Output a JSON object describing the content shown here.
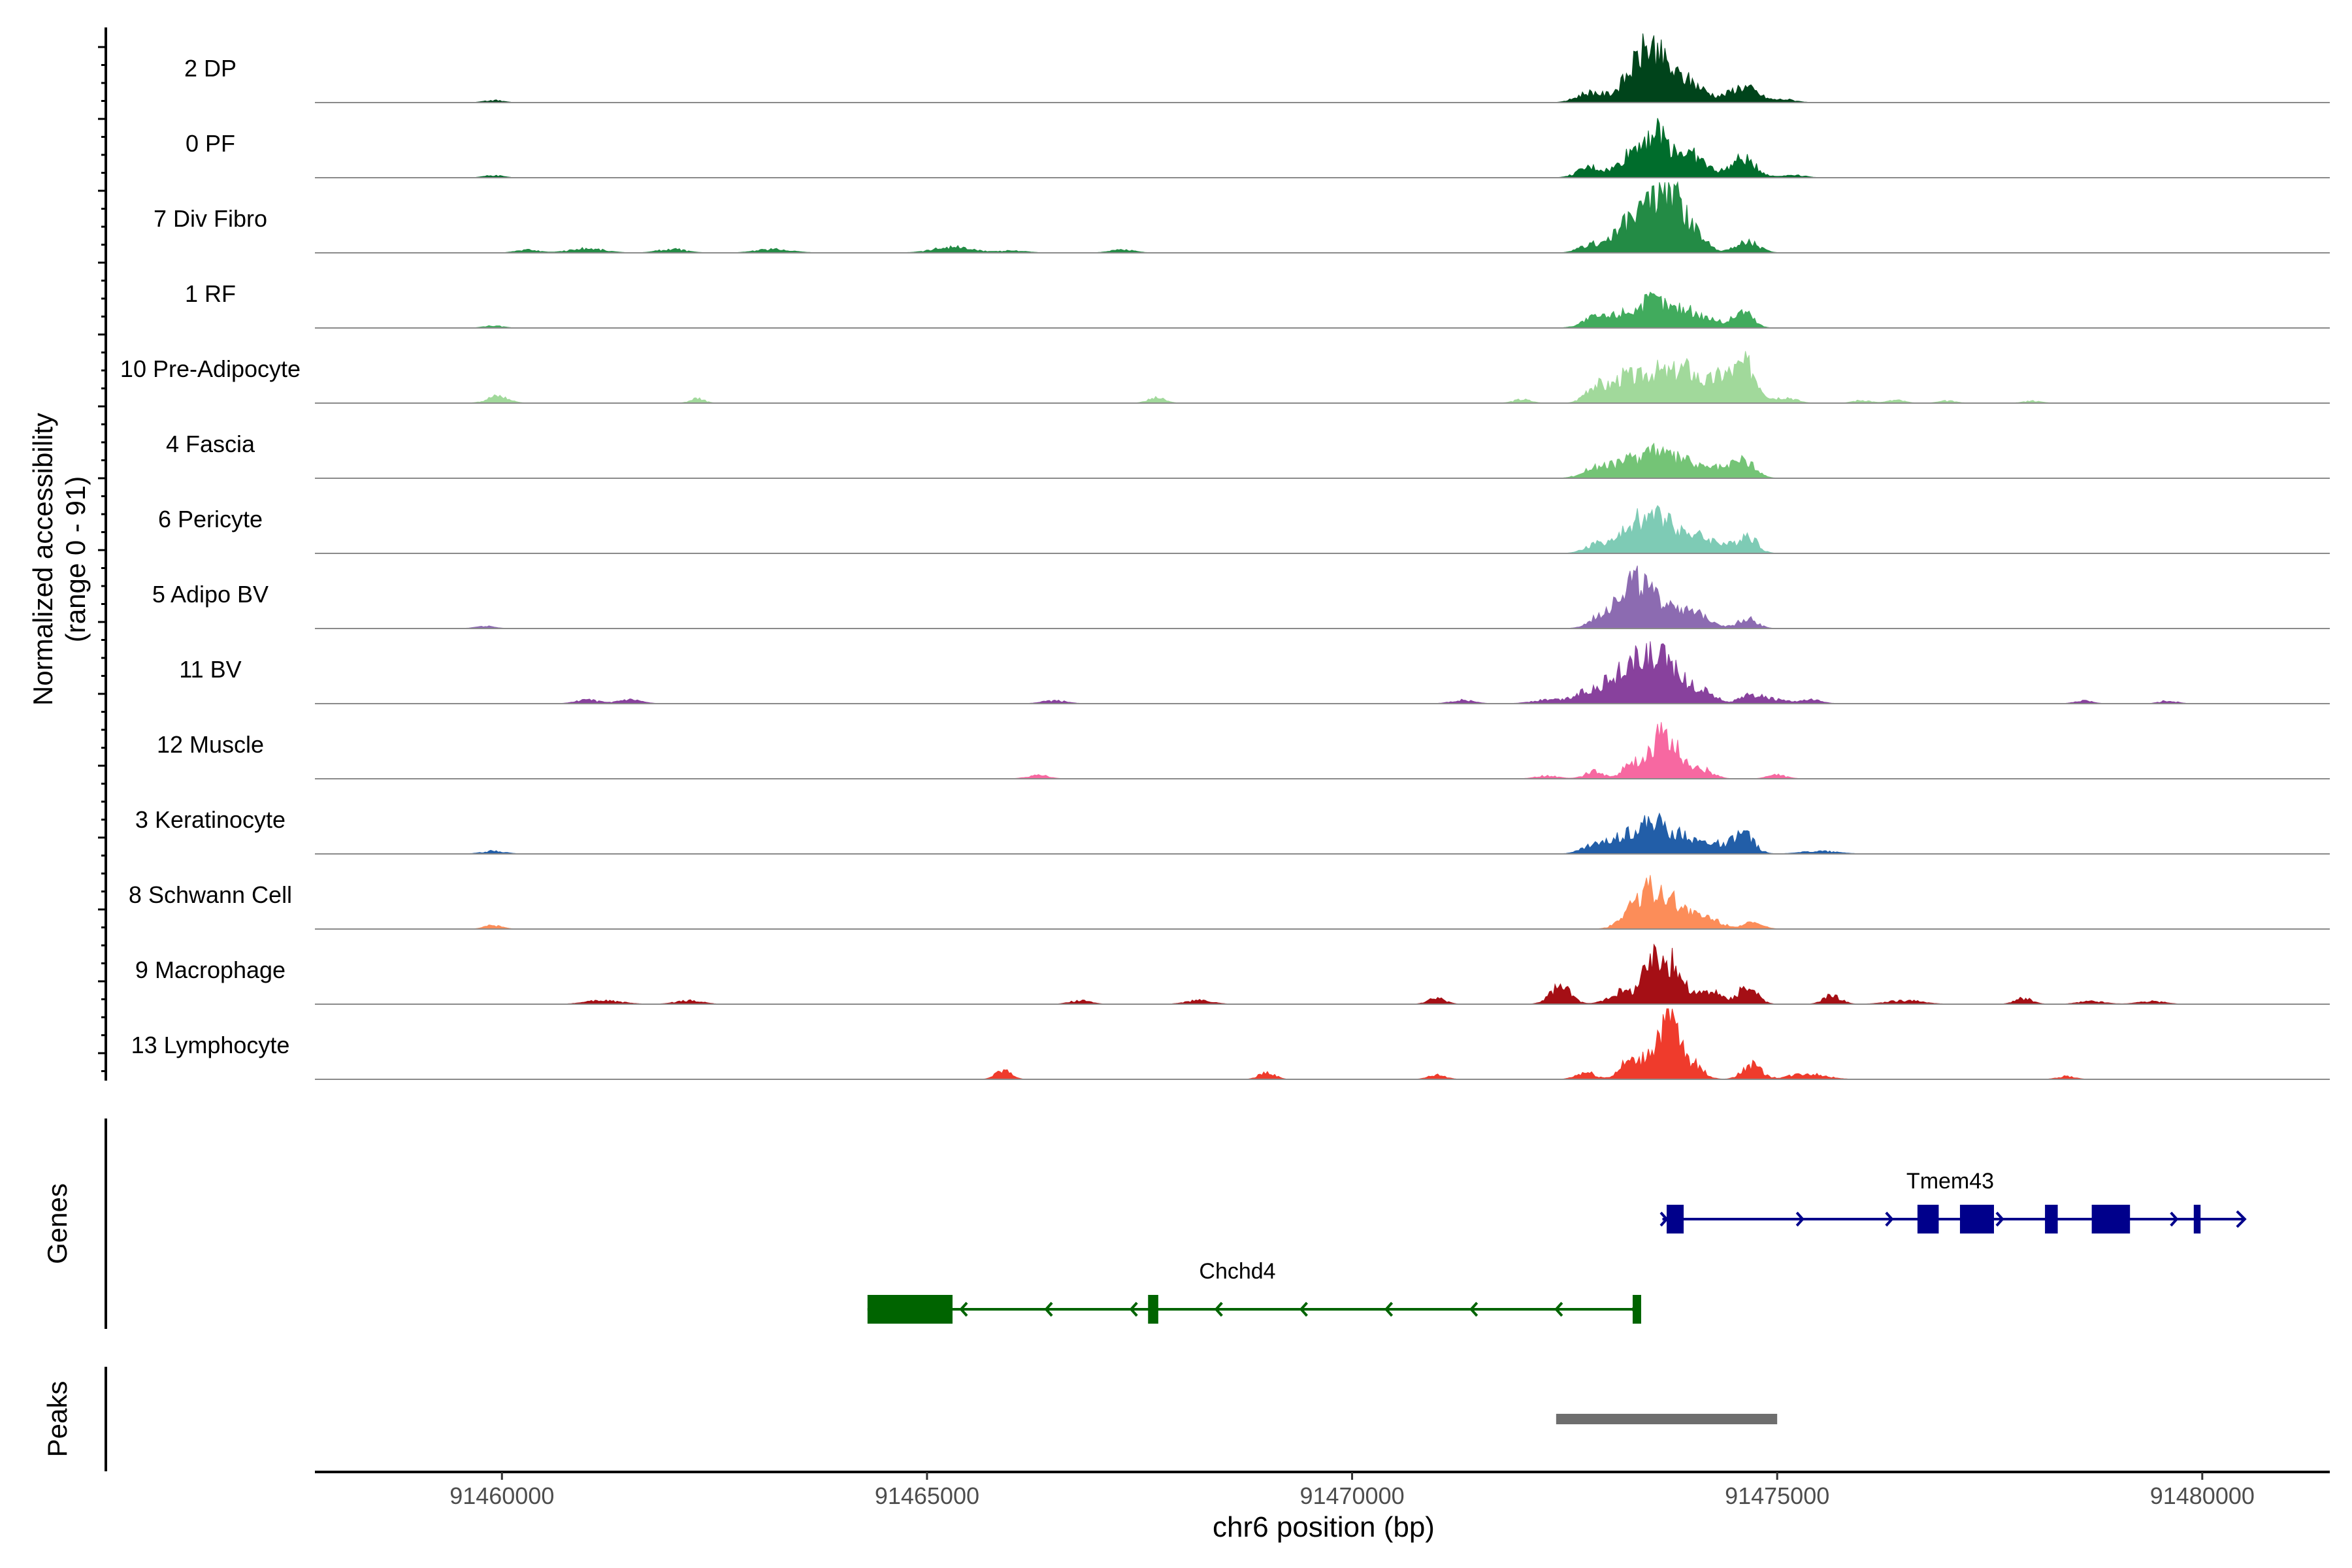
{
  "chart_data": {
    "type": "area",
    "subtype": "genome-coverage-tracks",
    "ylabel_line1": "Normalized accessibility",
    "ylabel_line2": "(range 0 - 91)",
    "y_range": [
      0,
      91
    ],
    "xlabel": "chr6 position (bp)",
    "xlim": [
      91457800,
      91481500
    ],
    "x_ticks": [
      91460000,
      91465000,
      91470000,
      91475000,
      91480000
    ],
    "x_tick_labels": [
      "91460000",
      "91465000",
      "91470000",
      "91475000",
      "91480000"
    ],
    "track_xlim": [
      91457800,
      91481500
    ],
    "tracks": [
      {
        "name": "2 DP",
        "color": "#00441B",
        "peaks": [
          [
            91473350,
            42,
            180
          ],
          [
            91473550,
            50,
            140
          ],
          [
            91473850,
            30,
            160
          ],
          [
            91472800,
            14,
            150
          ],
          [
            91474600,
            22,
            170
          ],
          [
            91474100,
            12,
            140
          ],
          [
            91475100,
            4,
            120
          ],
          [
            91459900,
            3,
            110
          ]
        ]
      },
      {
        "name": "0 PF",
        "color": "#006D2C",
        "peaks": [
          [
            91473350,
            38,
            180
          ],
          [
            91473600,
            44,
            140
          ],
          [
            91473900,
            26,
            160
          ],
          [
            91472800,
            14,
            140
          ],
          [
            91474600,
            26,
            150
          ],
          [
            91474100,
            13,
            150
          ],
          [
            91475200,
            4,
            120
          ],
          [
            91459900,
            3,
            110
          ]
        ]
      },
      {
        "name": "7 Div Fibro",
        "color": "#238B45",
        "peaks": [
          [
            91473500,
            56,
            160
          ],
          [
            91473750,
            66,
            130
          ],
          [
            91473200,
            30,
            170
          ],
          [
            91474000,
            28,
            160
          ],
          [
            91474650,
            16,
            130
          ],
          [
            91472800,
            10,
            130
          ],
          [
            91465300,
            8,
            220
          ],
          [
            91461000,
            6,
            200
          ],
          [
            91462000,
            5,
            160
          ],
          [
            91460300,
            4,
            130
          ],
          [
            91467300,
            4,
            140
          ],
          [
            91463200,
            5,
            200
          ],
          [
            91466000,
            3,
            160
          ]
        ]
      },
      {
        "name": "1 RF",
        "color": "#41AB5D",
        "peaks": [
          [
            91473550,
            38,
            150
          ],
          [
            91473200,
            20,
            150
          ],
          [
            91473900,
            24,
            140
          ],
          [
            91474600,
            24,
            110
          ],
          [
            91472850,
            14,
            140
          ],
          [
            91474200,
            12,
            140
          ],
          [
            91459900,
            3,
            110
          ]
        ]
      },
      {
        "name": "10 Pre-Adipocyte",
        "color": "#A1D99B",
        "peaks": [
          [
            91474650,
            48,
            130
          ],
          [
            91474350,
            36,
            150
          ],
          [
            91473550,
            40,
            140
          ],
          [
            91473200,
            36,
            150
          ],
          [
            91473850,
            30,
            140
          ],
          [
            91472850,
            24,
            110
          ],
          [
            91474000,
            24,
            140
          ],
          [
            91459950,
            10,
            120
          ],
          [
            91462300,
            7,
            80
          ],
          [
            91467700,
            7,
            100
          ],
          [
            91472000,
            5,
            100
          ],
          [
            91475100,
            8,
            120
          ],
          [
            91476000,
            4,
            100
          ],
          [
            91476400,
            4,
            100
          ],
          [
            91477000,
            3,
            100
          ],
          [
            91478000,
            3,
            100
          ]
        ]
      },
      {
        "name": "4 Fascia",
        "color": "#74C476",
        "peaks": [
          [
            91473550,
            40,
            150
          ],
          [
            91473200,
            22,
            150
          ],
          [
            91473900,
            24,
            140
          ],
          [
            91474600,
            26,
            130
          ],
          [
            91472850,
            14,
            140
          ],
          [
            91474250,
            14,
            140
          ]
        ]
      },
      {
        "name": "6 Pericyte",
        "color": "#7ECBB5",
        "peaks": [
          [
            91473450,
            36,
            140
          ],
          [
            91473700,
            42,
            130
          ],
          [
            91473250,
            24,
            140
          ],
          [
            91474000,
            24,
            140
          ],
          [
            91474650,
            26,
            110
          ],
          [
            91472900,
            14,
            140
          ],
          [
            91474300,
            14,
            140
          ]
        ]
      },
      {
        "name": "5 Adipo BV",
        "color": "#8C6BB1",
        "peaks": [
          [
            91473400,
            52,
            150
          ],
          [
            91473200,
            34,
            140
          ],
          [
            91473750,
            34,
            140
          ],
          [
            91474100,
            18,
            150
          ],
          [
            91474650,
            14,
            110
          ],
          [
            91472950,
            18,
            140
          ],
          [
            91459800,
            3,
            110
          ]
        ]
      },
      {
        "name": "11 BV",
        "color": "#88419D",
        "peaks": [
          [
            91473450,
            56,
            160
          ],
          [
            91473750,
            48,
            140
          ],
          [
            91473150,
            34,
            160
          ],
          [
            91472800,
            18,
            170
          ],
          [
            91474100,
            20,
            150
          ],
          [
            91474700,
            12,
            130
          ],
          [
            91472300,
            5,
            180
          ],
          [
            91461000,
            5,
            130
          ],
          [
            91461500,
            5,
            140
          ],
          [
            91466500,
            4,
            140
          ],
          [
            91471300,
            5,
            130
          ],
          [
            91475000,
            5,
            130
          ],
          [
            91475400,
            5,
            120
          ],
          [
            91478600,
            4,
            100
          ],
          [
            91479600,
            4,
            100
          ]
        ]
      },
      {
        "name": "12 Muscle",
        "color": "#F768A1",
        "peaks": [
          [
            91473600,
            50,
            110
          ],
          [
            91473800,
            36,
            110
          ],
          [
            91473300,
            22,
            110
          ],
          [
            91474100,
            14,
            130
          ],
          [
            91472850,
            10,
            110
          ],
          [
            91472300,
            4,
            130
          ],
          [
            91466300,
            5,
            120
          ],
          [
            91475000,
            5,
            110
          ]
        ]
      },
      {
        "name": "3 Keratinocyte",
        "color": "#225EA8",
        "peaks": [
          [
            91473550,
            42,
            160
          ],
          [
            91473200,
            24,
            150
          ],
          [
            91473900,
            24,
            140
          ],
          [
            91474600,
            28,
            120
          ],
          [
            91472850,
            12,
            140
          ],
          [
            91474250,
            14,
            140
          ],
          [
            91475500,
            4,
            200
          ],
          [
            91459900,
            4,
            130
          ]
        ]
      },
      {
        "name": "8 Schwann Cell",
        "color": "#FC8D59",
        "peaks": [
          [
            91473550,
            48,
            150
          ],
          [
            91473300,
            26,
            140
          ],
          [
            91473850,
            28,
            150
          ],
          [
            91474200,
            14,
            150
          ],
          [
            91474700,
            8,
            120
          ],
          [
            91459900,
            5,
            100
          ]
        ]
      },
      {
        "name": "9 Macrophage",
        "color": "#A50F15",
        "peaks": [
          [
            91473550,
            60,
            140
          ],
          [
            91473800,
            42,
            120
          ],
          [
            91472450,
            24,
            120
          ],
          [
            91473150,
            16,
            140
          ],
          [
            91474650,
            24,
            110
          ],
          [
            91474200,
            18,
            140
          ],
          [
            91475650,
            12,
            100
          ],
          [
            91471000,
            8,
            100
          ],
          [
            91468200,
            5,
            150
          ],
          [
            91461200,
            5,
            200
          ],
          [
            91462200,
            5,
            150
          ],
          [
            91466800,
            5,
            120
          ],
          [
            91476500,
            5,
            200
          ],
          [
            91477900,
            8,
            100
          ],
          [
            91478700,
            4,
            150
          ],
          [
            91479400,
            4,
            150
          ]
        ]
      },
      {
        "name": "13 Lymphocyte",
        "color": "#EF3B2C",
        "peaks": [
          [
            91473750,
            76,
            100
          ],
          [
            91473550,
            40,
            120
          ],
          [
            91473250,
            24,
            110
          ],
          [
            91474000,
            22,
            120
          ],
          [
            91474700,
            20,
            110
          ],
          [
            91475350,
            8,
            200
          ],
          [
            91472750,
            10,
            110
          ],
          [
            91465900,
            12,
            90
          ],
          [
            91469000,
            10,
            90
          ],
          [
            91471000,
            6,
            100
          ],
          [
            91478400,
            4,
            100
          ]
        ]
      }
    ],
    "genes_label": "Genes",
    "genes": [
      {
        "name": "Tmem43",
        "color": "#00008B",
        "strand": "+",
        "start": 91473650,
        "end": 91480500,
        "exons": [
          [
            91473700,
            91473900
          ],
          [
            91476650,
            91476900
          ],
          [
            91477150,
            91477550
          ],
          [
            91478150,
            91478300
          ],
          [
            91478700,
            91479150
          ],
          [
            91479900,
            91479980
          ]
        ],
        "arrows": [
          91473700,
          91475300,
          91476350,
          91477650,
          91478800,
          91479700
        ]
      },
      {
        "name": "Chchd4",
        "color": "#006400",
        "strand": "-",
        "start": 91464300,
        "end": 91473400,
        "exons": [
          [
            91464300,
            91465300
          ],
          [
            91467600,
            91467720
          ],
          [
            91473300,
            91473400
          ]
        ],
        "arrows": [
          91465400,
          91466400,
          91467400,
          91468400,
          91469400,
          91470400,
          91471400,
          91472400,
          91473300
        ]
      }
    ],
    "peaks_label": "Peaks",
    "peak_regions": [
      [
        91472400,
        91475000
      ]
    ]
  }
}
